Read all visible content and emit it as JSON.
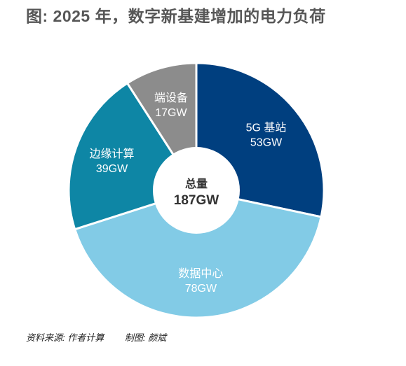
{
  "title": "图: 2025 年，数字新基建增加的电力负荷",
  "source_text": "资料来源: 作者计算",
  "maker_text": "制图: 颜斌",
  "chart_data": {
    "type": "pie",
    "variant": "donut",
    "center_label": "总量",
    "center_value": "187GW",
    "slices": [
      {
        "label": "5G 基站",
        "value": 53,
        "value_text": "53GW",
        "color": "#003f7f"
      },
      {
        "label": "数据中心",
        "value": 78,
        "value_text": "78GW",
        "color": "#82cbe6"
      },
      {
        "label": "边缘计算",
        "value": 39,
        "value_text": "39GW",
        "color": "#0e86a5"
      },
      {
        "label": "端设备",
        "value": 17,
        "value_text": "17GW",
        "color": "#8c8c8c"
      }
    ]
  }
}
